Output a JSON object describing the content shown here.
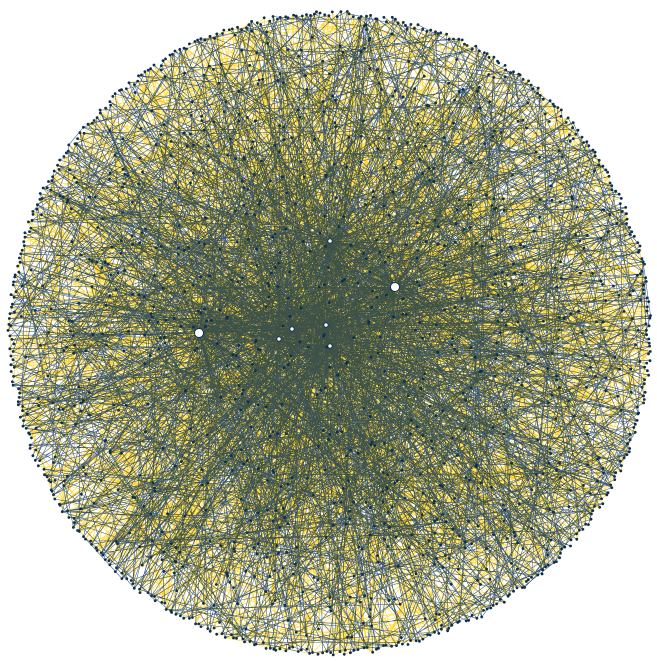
{
  "diagram": {
    "type": "network-graph",
    "layout": "circular",
    "colors": {
      "background": "#ffffff",
      "edge_primary": "#0d2f4f",
      "edge_secondary": "#ffcc00",
      "node_fill": "#0d2f4f",
      "hub_fill": "#ffffff",
      "hub_stroke": "#0d2f4f"
    },
    "node_count": 1400,
    "primary_edge_count": 2000,
    "secondary_edge_count": 1800
  }
}
